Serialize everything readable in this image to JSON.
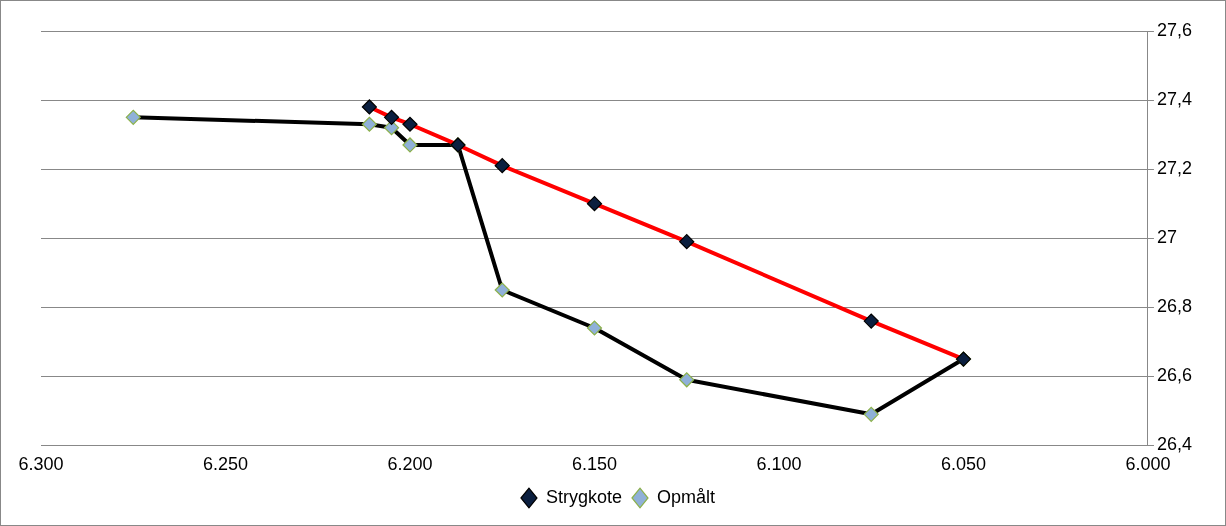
{
  "chart_data": {
    "type": "line",
    "series": [
      {
        "name": "Strygkote",
        "color": "#ff0000",
        "x": [
          6211,
          6205,
          6200,
          6187,
          6175,
          6150,
          6125,
          6075,
          6050
        ],
        "values": [
          27.38,
          27.35,
          27.33,
          27.27,
          27.21,
          27.1,
          26.99,
          26.76,
          26.65
        ]
      },
      {
        "name": "Opmålt",
        "color": "#000000",
        "x": [
          6275,
          6211,
          6205,
          6200,
          6187,
          6175,
          6150,
          6125,
          6075,
          6050
        ],
        "values": [
          27.35,
          27.33,
          27.32,
          27.27,
          27.27,
          26.85,
          26.74,
          26.59,
          26.49,
          26.65
        ]
      }
    ],
    "xlim": [
      6300,
      6000
    ],
    "xticks": [
      {
        "value": 6300,
        "label": "6.300"
      },
      {
        "value": 6250,
        "label": "6.250"
      },
      {
        "value": 6200,
        "label": "6.200"
      },
      {
        "value": 6150,
        "label": "6.150"
      },
      {
        "value": 6100,
        "label": "6.100"
      },
      {
        "value": 6050,
        "label": "6.050"
      },
      {
        "value": 6000,
        "label": "6.000"
      }
    ],
    "ylim": [
      26.4,
      27.6
    ],
    "yticks": [
      {
        "value": 26.4,
        "label": "26,4"
      },
      {
        "value": 26.6,
        "label": "26,6"
      },
      {
        "value": 26.8,
        "label": "26,8"
      },
      {
        "value": 27,
        "label": "27"
      },
      {
        "value": 27.2,
        "label": "27,2"
      },
      {
        "value": 27.4,
        "label": "27,4"
      },
      {
        "value": 27.6,
        "label": "27,6"
      }
    ],
    "grid": "y",
    "legend": "bottom",
    "marker": "diamond",
    "line_style": "solid"
  }
}
